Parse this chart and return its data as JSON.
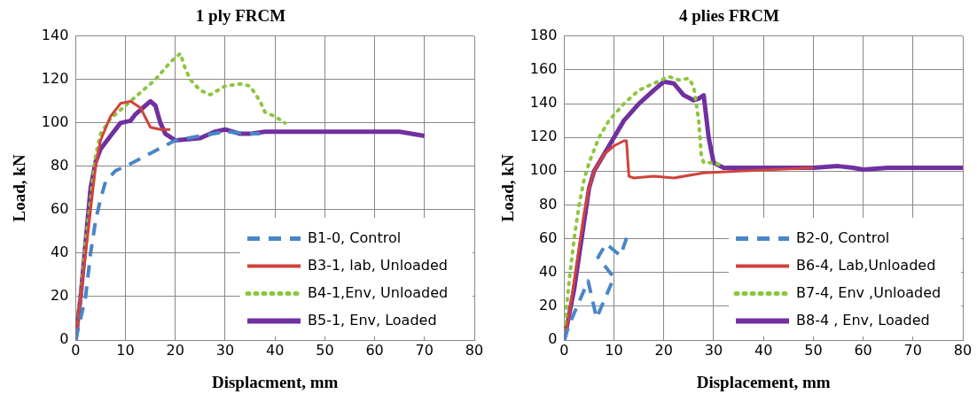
{
  "chart_data": [
    {
      "type": "line",
      "title": "1 ply FRCM",
      "xlabel": "Displacment, mm",
      "ylabel": "Load, kN",
      "xlim": [
        0,
        80
      ],
      "xticks": [
        0,
        10,
        20,
        30,
        40,
        50,
        60,
        70,
        80
      ],
      "ylim": [
        0,
        140
      ],
      "yticks": [
        0,
        20,
        40,
        60,
        80,
        100,
        120,
        140
      ],
      "grid": true,
      "legend": "bottom right",
      "marker": "none",
      "series": [
        {
          "name": "B1-0, Control",
          "color": "#4a86c8",
          "line_style": "dashed",
          "x": [
            0,
            1,
            2,
            3,
            4,
            5,
            6,
            8,
            10,
            15,
            20,
            25,
            30,
            35,
            37
          ],
          "values": [
            0,
            10,
            20,
            40,
            55,
            65,
            73,
            78,
            80,
            86,
            92,
            94,
            96,
            95,
            95
          ]
        },
        {
          "name": "B3-1, lab, Unloaded",
          "color": "#d0433b",
          "line_style": "solid",
          "x": [
            0,
            1,
            2,
            3,
            4,
            5,
            7,
            9,
            11,
            13,
            15,
            17,
            19
          ],
          "values": [
            0,
            20,
            40,
            60,
            80,
            92,
            103,
            109,
            110,
            107,
            98,
            97,
            97
          ]
        },
        {
          "name": "B4-1,Env, Unloaded",
          "color": "#8dc63f",
          "line_style": "dotted",
          "x": [
            0,
            1,
            2,
            3,
            4,
            5,
            7,
            10,
            13,
            16,
            19,
            21,
            22,
            23,
            25,
            27,
            30,
            33,
            35,
            37,
            38,
            40,
            42
          ],
          "values": [
            0,
            20,
            45,
            65,
            85,
            95,
            102,
            108,
            114,
            120,
            128,
            132,
            125,
            120,
            115,
            113,
            117,
            118,
            117,
            110,
            105,
            103,
            100
          ]
        },
        {
          "name": "B5-1, Env, Loaded",
          "color": "#7030a0",
          "line_style": "solid",
          "x": [
            0,
            1,
            2,
            3,
            4,
            5,
            7,
            9,
            11,
            12,
            14,
            15,
            16,
            17,
            18,
            20,
            25,
            28,
            30,
            33,
            35,
            38,
            40,
            45,
            50,
            55,
            60,
            65,
            70
          ],
          "values": [
            0,
            20,
            45,
            70,
            82,
            88,
            94,
            100,
            101,
            104,
            108,
            110,
            108,
            100,
            95,
            92,
            93,
            96,
            97,
            95,
            95,
            96,
            96,
            96,
            96,
            96,
            96,
            96,
            94
          ]
        }
      ]
    },
    {
      "type": "line",
      "title": "4 plies FRCM",
      "xlabel": "Displacement, mm",
      "ylabel": "Load, kN",
      "xlim": [
        0,
        80
      ],
      "xticks": [
        0,
        10,
        20,
        30,
        40,
        50,
        60,
        70,
        80
      ],
      "ylim": [
        0,
        180
      ],
      "yticks": [
        0,
        20,
        40,
        60,
        80,
        100,
        120,
        140,
        160,
        180
      ],
      "grid": true,
      "legend": "bottom right",
      "marker": "none",
      "series": [
        {
          "name": "B2-0, Control",
          "color": "#4a86c8",
          "line_style": "dashed",
          "x": [
            0,
            1,
            3.2,
            4.8,
            6.5,
            8.4,
            10,
            6.8,
            8.4,
            11.3,
            12.6
          ],
          "values": [
            0,
            9,
            24,
            35,
            13,
            26,
            37,
            49,
            57,
            50,
            61
          ]
        },
        {
          "name": "B6-4, Lab,Unloaded",
          "color": "#d0433b",
          "line_style": "solid",
          "x": [
            0,
            1,
            2,
            3,
            4,
            5,
            6,
            8,
            10,
            12,
            12.5,
            13,
            14,
            18,
            22,
            28,
            35,
            50
          ],
          "values": [
            0,
            15,
            35,
            55,
            75,
            90,
            100,
            110,
            115,
            118,
            118,
            97,
            96,
            97,
            96,
            99,
            100,
            102
          ]
        },
        {
          "name": "B7-4, Env ,Unloaded",
          "color": "#8dc63f",
          "line_style": "dotted",
          "x": [
            0,
            0.5,
            1,
            2,
            3,
            4,
            5,
            7,
            9,
            12,
            15,
            18,
            21,
            23,
            25,
            26,
            27,
            27.5,
            28,
            30,
            32
          ],
          "values": [
            0,
            20,
            35,
            60,
            80,
            95,
            105,
            120,
            130,
            140,
            148,
            152,
            156,
            154,
            155,
            150,
            130,
            110,
            105,
            105,
            103
          ]
        },
        {
          "name": "B8-4 , Env, Loaded",
          "color": "#7030a0",
          "line_style": "solid",
          "x": [
            0,
            1,
            2,
            3,
            4,
            5,
            6,
            8,
            10,
            12,
            15,
            18,
            20,
            22,
            24,
            26,
            27,
            28,
            29,
            30,
            32,
            40,
            50,
            55,
            58,
            60,
            65,
            70,
            75,
            80
          ],
          "values": [
            0,
            15,
            30,
            50,
            70,
            90,
            100,
            110,
            120,
            130,
            140,
            148,
            153,
            152,
            145,
            142,
            143,
            145,
            120,
            105,
            102,
            102,
            102,
            103,
            102,
            101,
            102,
            102,
            102,
            102
          ]
        }
      ]
    }
  ]
}
